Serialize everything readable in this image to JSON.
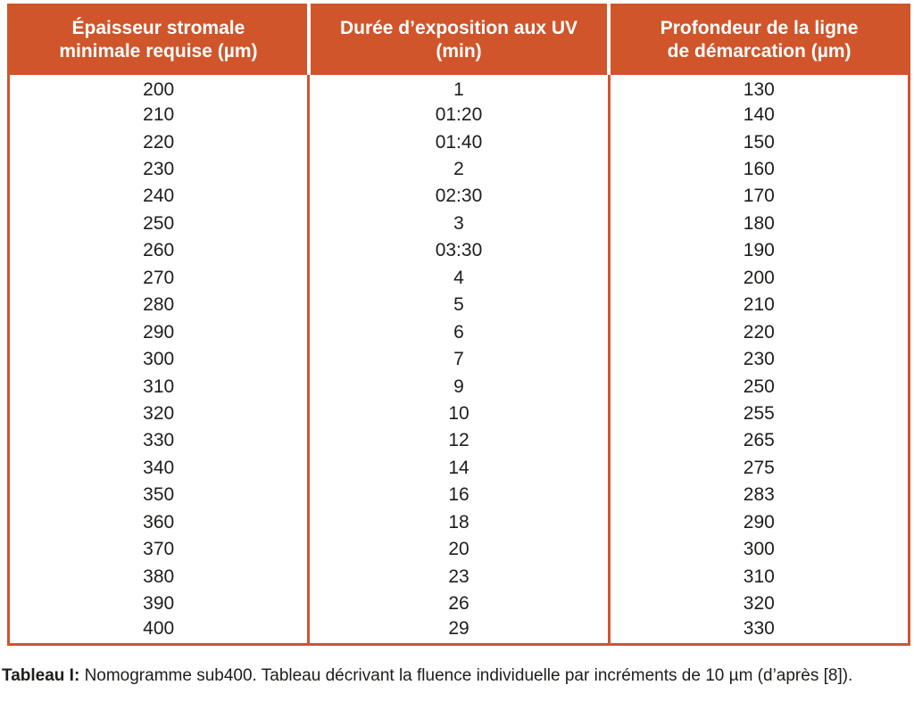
{
  "colors": {
    "accent": "#d0552b",
    "header_text": "#ffffff",
    "body_text": "#1d1d1b"
  },
  "table": {
    "headers": [
      {
        "line1": "Épaisseur stromale",
        "line2": "minimale requise (µm)",
        "full": "Épaisseur stromale minimale requise (µm)"
      },
      {
        "line1": "Durée d’exposition aux UV",
        "line2": "(min)",
        "full": "Durée d’exposition aux UV (min)"
      },
      {
        "line1": "Profondeur de la ligne",
        "line2": "de démarcation (µm)",
        "full": "Profondeur de la ligne de démarcation (µm)"
      }
    ],
    "rows": [
      [
        "200",
        "1",
        "130"
      ],
      [
        "210",
        "01:20",
        "140"
      ],
      [
        "220",
        "01:40",
        "150"
      ],
      [
        "230",
        "2",
        "160"
      ],
      [
        "240",
        "02:30",
        "170"
      ],
      [
        "250",
        "3",
        "180"
      ],
      [
        "260",
        "03:30",
        "190"
      ],
      [
        "270",
        "4",
        "200"
      ],
      [
        "280",
        "5",
        "210"
      ],
      [
        "290",
        "6",
        "220"
      ],
      [
        "300",
        "7",
        "230"
      ],
      [
        "310",
        "9",
        "250"
      ],
      [
        "320",
        "10",
        "255"
      ],
      [
        "330",
        "12",
        "265"
      ],
      [
        "340",
        "14",
        "275"
      ],
      [
        "350",
        "16",
        "283"
      ],
      [
        "360",
        "18",
        "290"
      ],
      [
        "370",
        "20",
        "300"
      ],
      [
        "380",
        "23",
        "310"
      ],
      [
        "390",
        "26",
        "320"
      ],
      [
        "400",
        "29",
        "330"
      ]
    ]
  },
  "caption": {
    "label": "Tableau I:",
    "text": "Nomogramme sub400. Tableau décrivant la fluence individuelle par incréments de 10 µm (d’après [8])."
  }
}
